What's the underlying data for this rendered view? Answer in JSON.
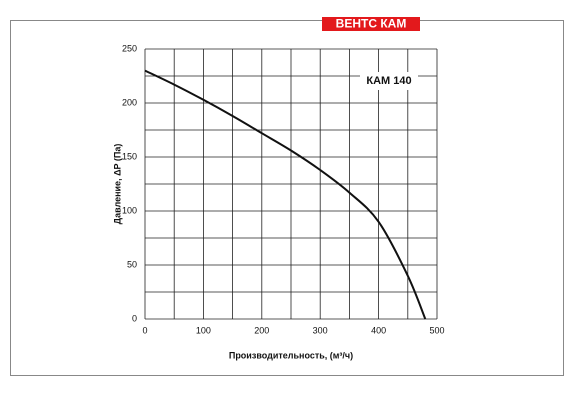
{
  "brand": "ВЕНТС КАМ",
  "chart_data": {
    "type": "line",
    "x_label": "Производительность, (м³/ч)",
    "y_label": "Давление, ΔP (Па)",
    "legend_label": "КАМ 140",
    "x": [
      0,
      50,
      100,
      150,
      200,
      250,
      300,
      350,
      400,
      450,
      480
    ],
    "series": [
      {
        "name": "КАМ 140",
        "color": "#111111",
        "values": [
          230,
          217,
          203,
          188,
          172,
          156,
          138,
          117,
          90,
          40,
          0
        ]
      }
    ],
    "xlim": [
      0,
      500
    ],
    "ylim": [
      0,
      250
    ],
    "xticks": [
      0,
      100,
      200,
      300,
      400,
      500
    ],
    "yticks": [
      0,
      50,
      100,
      150,
      200,
      250
    ],
    "x_minor_ticks": [
      50,
      150,
      250,
      350,
      450
    ],
    "y_minor_ticks": [
      25,
      75,
      125,
      175,
      225
    ],
    "grid": true
  }
}
